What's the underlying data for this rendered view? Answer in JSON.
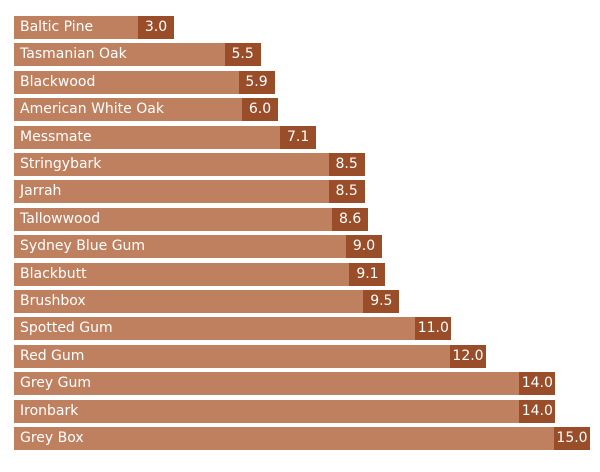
{
  "chart_data": {
    "type": "bar",
    "orientation": "horizontal",
    "title": "",
    "xlabel": "",
    "ylabel": "",
    "xlim": [
      0,
      15.0
    ],
    "grid": false,
    "colors": {
      "bar": "#bf8060",
      "value_box": "#9a4d29",
      "text": "#ffffff"
    },
    "categories": [
      "Baltic Pine",
      "Tasmanian Oak",
      "Blackwood",
      "American White Oak",
      "Messmate",
      "Stringybark",
      "Jarrah",
      "Tallowwood",
      "Sydney Blue Gum",
      "Blackbutt",
      "Brushbox",
      "Spotted Gum",
      "Red Gum",
      "Grey Gum",
      "Ironbark",
      "Grey Box"
    ],
    "values": [
      3.0,
      5.5,
      5.9,
      6.0,
      7.1,
      8.5,
      8.5,
      8.6,
      9.0,
      9.1,
      9.5,
      11.0,
      12.0,
      14.0,
      14.0,
      15.0
    ],
    "value_labels": [
      "3.0",
      "5.5",
      "5.9",
      "6.0",
      "7.1",
      "8.5",
      "8.5",
      "8.6",
      "9.0",
      "9.1",
      "9.5",
      "11.0",
      "12.0",
      "14.0",
      "14.0",
      "15.0"
    ]
  }
}
